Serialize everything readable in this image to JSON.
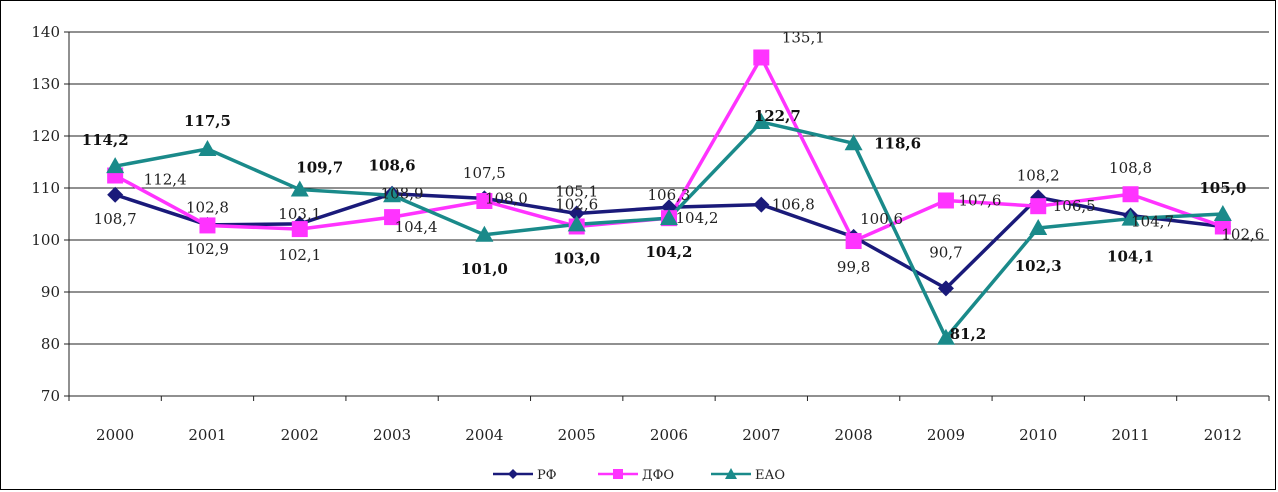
{
  "chart_data": {
    "type": "line",
    "title": "",
    "xlabel": "",
    "ylabel": "",
    "categories": [
      "2000",
      "2001",
      "2002",
      "2003",
      "2004",
      "2005",
      "2006",
      "2007",
      "2008",
      "2009",
      "2010",
      "2011",
      "2012"
    ],
    "ylim": [
      70,
      140
    ],
    "yticks": [
      70,
      80,
      90,
      100,
      110,
      120,
      130,
      140
    ],
    "grid": "horizontal",
    "legend": "bottom-center",
    "series": [
      {
        "name": "РФ",
        "color": "#1a1a7a",
        "marker": "diamond",
        "values": [
          108.7,
          102.9,
          103.1,
          108.9,
          108.0,
          105.1,
          106.3,
          106.8,
          100.6,
          90.7,
          108.2,
          104.7,
          102.6
        ],
        "labels": [
          "108,7",
          "102,9",
          "103,1",
          "108,9",
          "108,0",
          "105,1",
          "106,3",
          "106,8",
          "100,6",
          "90,7",
          "108,2",
          "104,7",
          "102,6"
        ],
        "bold_labels": false
      },
      {
        "name": "ДФО",
        "color": "#ff33ff",
        "marker": "square",
        "values": [
          112.4,
          102.8,
          102.1,
          104.4,
          107.5,
          102.6,
          104.2,
          135.1,
          99.8,
          107.6,
          106.5,
          108.8,
          102.6
        ],
        "labels": [
          "112,4",
          "102,8",
          "102,1",
          "104,4",
          "107,5",
          "102,6",
          "104,2",
          "135,1",
          "99,8",
          "107,6",
          "106,5",
          "108,8",
          ""
        ],
        "bold_labels": false
      },
      {
        "name": "ЕАО",
        "color": "#1a8a8a",
        "marker": "triangle",
        "values": [
          114.2,
          117.5,
          109.7,
          108.6,
          101.0,
          103.0,
          104.2,
          122.7,
          118.6,
          81.2,
          102.3,
          104.1,
          105.0
        ],
        "labels": [
          "114,2",
          "117,5",
          "109,7",
          "108,6",
          "101,0",
          "103,0",
          "104,2",
          "122,7",
          "118,6",
          "81,2",
          "102,3",
          "104,1",
          "105,0"
        ],
        "bold_labels": true
      }
    ]
  }
}
